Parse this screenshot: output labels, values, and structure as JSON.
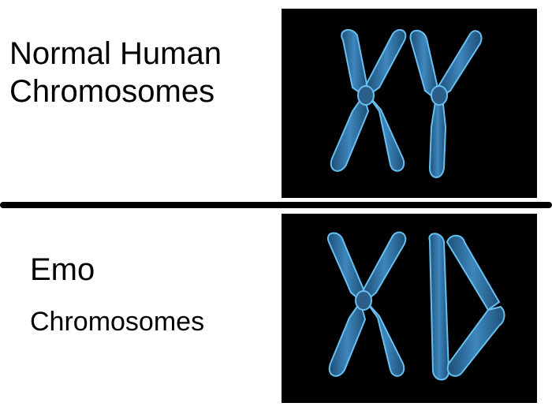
{
  "top": {
    "label_line1": "Normal Human",
    "label_line2": "Chromosomes",
    "image_icon": "xy-chromosomes-icon"
  },
  "bottom": {
    "label_line1": "Emo",
    "label_line2": "Chromosomes",
    "image_icon": "xd-chromosomes-icon"
  },
  "colors": {
    "background": "#ffffff",
    "panel": "#000000",
    "chromosome_fill": "#2f6f9f",
    "chromosome_glow": "#5fb4e6",
    "divider": "#000000"
  }
}
